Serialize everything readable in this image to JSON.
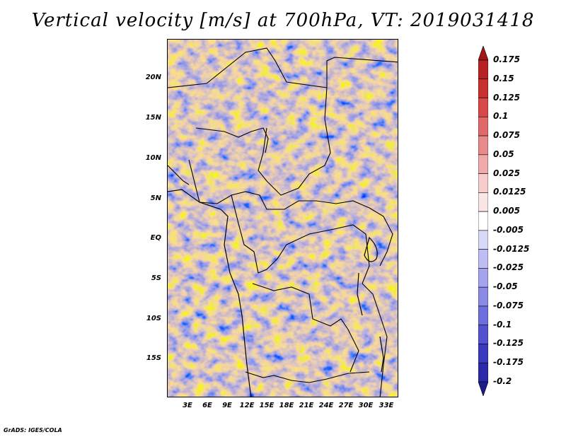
{
  "title": "Vertical velocity [m/s] at 700hPa, VT: 2019031418",
  "credit": "GrADS: IGES/COLA",
  "map": {
    "lat_labels": [
      "20N",
      "15N",
      "10N",
      "5N",
      "EQ",
      "5S",
      "10S",
      "15S"
    ],
    "lat_values": [
      20,
      15,
      10,
      5,
      0,
      -5,
      -10,
      -15
    ],
    "lon_labels": [
      "3E",
      "6E",
      "9E",
      "12E",
      "15E",
      "18E",
      "21E",
      "24E",
      "27E",
      "30E",
      "33E"
    ],
    "lon_values": [
      3,
      6,
      9,
      12,
      15,
      18,
      21,
      24,
      27,
      30,
      33
    ],
    "lon_range": [
      0,
      35
    ],
    "lat_range": [
      -20,
      25
    ]
  },
  "colorbar": {
    "labels": [
      "0.175",
      "0.15",
      "0.125",
      "0.1",
      "0.075",
      "0.05",
      "0.025",
      "0.0125",
      "0.005",
      "-0.005",
      "-0.0125",
      "-0.025",
      "-0.05",
      "-0.075",
      "-0.1",
      "-0.125",
      "-0.175",
      "-0.2"
    ],
    "colors": [
      "#a01818",
      "#b82222",
      "#c83030",
      "#d84848",
      "#e06a6a",
      "#e88a8a",
      "#f0aaaa",
      "#f6cccc",
      "#fbe6e6",
      "#ffffff",
      "#d8d8f8",
      "#bebef4",
      "#a4a4ee",
      "#8a8ae6",
      "#6e6ede",
      "#5252d0",
      "#3a3abf",
      "#2a2aa8",
      "#1c1c8c"
    ]
  }
}
